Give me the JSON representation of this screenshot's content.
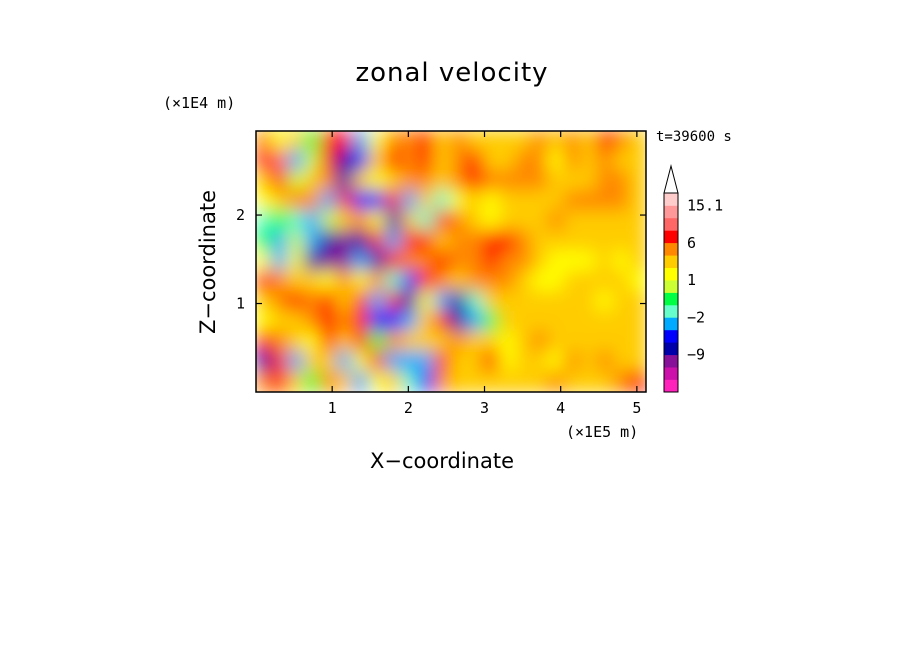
{
  "chart_data": {
    "type": "heatmap",
    "title": "zonal velocity",
    "xlabel": "X−coordinate",
    "ylabel": "Z−coordinate",
    "x_unit": "(×1E5 m)",
    "y_unit": "(×1E4 m)",
    "annotation": "t=39600 s",
    "xlim": [
      0,
      5.12
    ],
    "ylim": [
      0,
      2.95
    ],
    "x_ticks": [
      "1",
      "2",
      "3",
      "4",
      "5"
    ],
    "y_ticks": [
      "1",
      "2"
    ],
    "colorbar": {
      "levels": [
        -15,
        -12,
        -9,
        -6,
        -4,
        -2,
        -1,
        0,
        1,
        2,
        4,
        6,
        9,
        12,
        15.1
      ],
      "colors": [
        "#ff22bb",
        "#cc11aa",
        "#881199",
        "#0000aa",
        "#0000ff",
        "#00aaff",
        "#66ffcc",
        "#00ff44",
        "#ccff33",
        "#ffff00",
        "#ffcc00",
        "#ff8800",
        "#ff0000",
        "#ff6666",
        "#ff9999",
        "#ffcccc"
      ],
      "labels": [
        "15.1",
        "6",
        "1",
        "−2",
        "−9"
      ],
      "extend_top": true
    },
    "field": {
      "nx": 24,
      "nz": 13,
      "values": [
        [
          5,
          1,
          3,
          -1,
          7,
          7,
          -4,
          1,
          4,
          4,
          6,
          2,
          4,
          2,
          2,
          3,
          3,
          4,
          3,
          5,
          2,
          6,
          5,
          3
        ],
        [
          7,
          10,
          -3,
          0,
          8,
          -8,
          -6,
          3,
          6,
          5,
          6,
          3,
          4,
          7,
          3,
          2,
          4,
          5,
          1,
          4,
          3,
          4,
          3,
          2
        ],
        [
          2,
          6,
          0,
          3,
          4,
          -8,
          3,
          1,
          2,
          5,
          4,
          2,
          5,
          6,
          5,
          4,
          5,
          4,
          2,
          3,
          2,
          4,
          4,
          2
        ],
        [
          1,
          2,
          4,
          4,
          -3,
          6,
          -6,
          -6,
          6,
          -3,
          3,
          -2,
          1,
          2,
          1,
          2,
          2,
          3,
          3,
          4,
          5,
          4,
          4,
          2
        ],
        [
          -2,
          -1,
          -2,
          -3,
          0,
          2,
          4,
          1,
          -8,
          3,
          -2,
          6,
          4,
          2,
          1,
          2,
          3,
          3,
          4,
          2,
          2,
          3,
          2,
          3
        ],
        [
          -1,
          -4,
          0,
          -3,
          -7,
          -11,
          -8,
          7,
          -4,
          6,
          6,
          3,
          4,
          5,
          6,
          6,
          5,
          2,
          2,
          2,
          2,
          2,
          2,
          2
        ],
        [
          1,
          -3,
          1,
          -9,
          -11,
          -10,
          -4,
          -7,
          8,
          5,
          4,
          6,
          4,
          5,
          6,
          5,
          4,
          2,
          1,
          1,
          1,
          2,
          1,
          2
        ],
        [
          6,
          4,
          2,
          3,
          1,
          5,
          1,
          5,
          -2,
          -6,
          6,
          4,
          3,
          5,
          4,
          4,
          3,
          1,
          1,
          3,
          3,
          3,
          2,
          1
        ],
        [
          3,
          5,
          6,
          4,
          7,
          2,
          6,
          -4,
          6,
          -7,
          1,
          -4,
          -9,
          -2,
          3,
          3,
          3,
          3,
          2,
          2,
          3,
          1,
          2,
          2
        ],
        [
          1,
          2,
          3,
          4,
          8,
          5,
          6,
          -5,
          -6,
          -3,
          2,
          6,
          -9,
          -3,
          -1,
          2,
          3,
          2,
          3,
          3,
          3,
          2,
          3,
          2
        ],
        [
          7,
          4,
          3,
          1,
          6,
          2,
          6,
          -1,
          5,
          3,
          3,
          2,
          4,
          2,
          3,
          1,
          2,
          4,
          3,
          2,
          2,
          2,
          3,
          3
        ],
        [
          -8,
          8,
          -3,
          2,
          3,
          -3,
          1,
          7,
          -4,
          -3,
          -3,
          6,
          3,
          2,
          7,
          1,
          3,
          3,
          1,
          4,
          2,
          4,
          3,
          2
        ],
        [
          4,
          6,
          3,
          -1,
          4,
          3,
          -3,
          1,
          2,
          -2,
          -6,
          4,
          3,
          2,
          3,
          3,
          3,
          2,
          5,
          3,
          2,
          3,
          4,
          6
        ]
      ]
    }
  }
}
